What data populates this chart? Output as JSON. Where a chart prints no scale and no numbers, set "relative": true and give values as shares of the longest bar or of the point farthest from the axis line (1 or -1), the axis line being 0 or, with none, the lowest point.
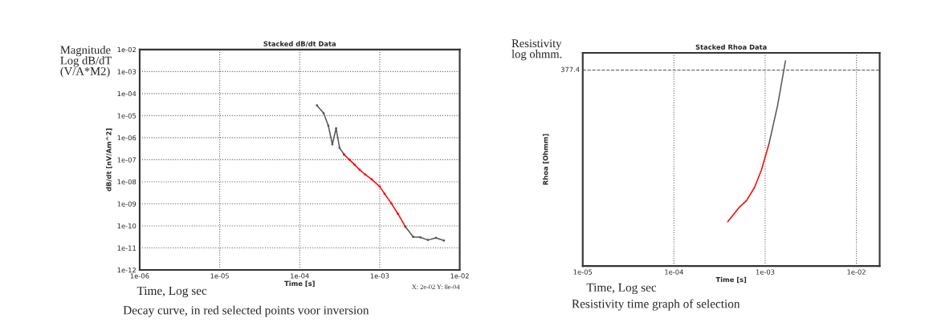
{
  "chart_data": [
    {
      "type": "line",
      "title": "Stacked dB/dt Data",
      "xlabel": "Time [s]",
      "ylabel": "dB/dt [nV/Am^2]",
      "log": "xy",
      "grid": true,
      "marker": "circle",
      "line_style": "solid",
      "xlim": [
        1e-06,
        0.01
      ],
      "xticks": [
        {
          "value": 1e-06,
          "label": "1e-06"
        },
        {
          "value": 1e-05,
          "label": "1e-05"
        },
        {
          "value": 0.0001,
          "label": "1e-04"
        },
        {
          "value": 0.001,
          "label": "1e-03"
        },
        {
          "value": 0.01,
          "label": "1e-02"
        }
      ],
      "ylim": [
        1e-12,
        0.01
      ],
      "yticks": [
        {
          "value": 1e-12,
          "label": "1e-12"
        },
        {
          "value": 1e-11,
          "label": "1e-11"
        },
        {
          "value": 1e-10,
          "label": "1e-10"
        },
        {
          "value": 1e-09,
          "label": "1e-09"
        },
        {
          "value": 1e-08,
          "label": "1e-08"
        },
        {
          "value": 1e-07,
          "label": "1e-07"
        },
        {
          "value": 1e-06,
          "label": "1e-06"
        },
        {
          "value": 1e-05,
          "label": "1e-05"
        },
        {
          "value": 0.0001,
          "label": "1e-04"
        },
        {
          "value": 0.001,
          "label": "1e-03"
        },
        {
          "value": 0.01,
          "label": "1e-02"
        }
      ],
      "series": [
        {
          "color": "#555555",
          "x": [
            0.000164,
            0.000199,
            0.000228,
            0.000256,
            0.000285,
            0.000315,
            0.000359
          ],
          "values": [
            2.93e-05,
            1.3e-05,
            3.51e-06,
            4.98e-07,
            2.66e-06,
            3.46e-07,
            1.72e-07
          ]
        },
        {
          "color": "#ff0000",
          "x": [
            0.000359,
            0.000422,
            0.000485,
            0.000561,
            0.000659,
            0.000794,
            0.001,
            0.00115,
            0.00139,
            0.00169,
            0.00209
          ],
          "values": [
            1.72e-07,
            9.86e-08,
            5.97e-08,
            3.51e-08,
            2.12e-08,
            1.29e-08,
            6.05e-09,
            2.85e-09,
            1.07e-09,
            3.51e-10,
            9.2e-11
          ]
        },
        {
          "color": "#555555",
          "x": [
            0.00209,
            0.00262,
            0.00322,
            0.004,
            0.00504,
            0.00635
          ],
          "values": [
            9.2e-11,
            3.18e-11,
            3.01e-11,
            2.28e-11,
            2.85e-11,
            2.15e-11
          ]
        }
      ],
      "annotations": [
        "Magnitude\nLog dB/dT\n(V/A*M2)",
        "Time, Log sec",
        "Decay curve, in red selected points voor inversion",
        "X: 2e-02 Y: 8e-04"
      ]
    },
    {
      "type": "line",
      "title": "Stacked Rhoa Data",
      "xlabel": "Time [s]",
      "ylabel": "Rhoa [Ohmm]",
      "log": "x",
      "relative": true,
      "grid": true,
      "marker": "none",
      "line_style": "solid",
      "xlim": [
        1e-05,
        0.018
      ],
      "xticks": [
        {
          "value": 1e-05,
          "label": "1e-05"
        },
        {
          "value": 0.0001,
          "label": "1e-04"
        },
        {
          "value": 0.001,
          "label": "1e-03"
        },
        {
          "value": 0.01,
          "label": "1e-02"
        }
      ],
      "ref_lines": [
        {
          "axis": "y",
          "value": 0.955,
          "line_style": "dashed",
          "color": "#555555"
        }
      ],
      "series": [
        {
          "color": "#ff0000",
          "x": [
            0.000389,
            0.000452,
            0.000525,
            0.000625,
            0.000762,
            0.00091,
            0.0011
          ],
          "values": [
            0.216,
            0.252,
            0.288,
            0.319,
            0.382,
            0.468,
            0.595
          ]
        },
        {
          "color": "#555555",
          "x": [
            0.0011,
            0.00137,
            0.00167
          ],
          "values": [
            0.595,
            0.784,
            1.0
          ]
        }
      ],
      "annotations": [
        "Resistivity\nlog ohmm.",
        "Time, Log sec",
        "Resistivity time graph of selection",
        "377.4"
      ]
    }
  ]
}
